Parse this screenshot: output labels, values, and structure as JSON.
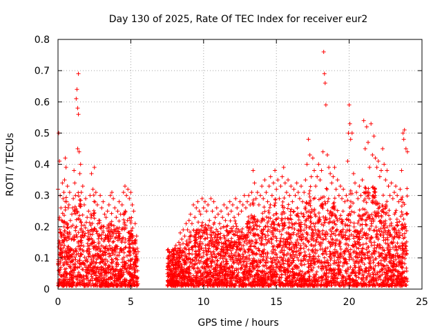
{
  "chart_data": {
    "type": "scatter",
    "title": "Day 130 of 2025, Rate Of TEC Index for receiver eur2",
    "xlabel": "GPS time / hours",
    "ylabel": "ROTI / TECUs",
    "xlim": [
      0,
      25
    ],
    "ylim": [
      0,
      0.8
    ],
    "xticks": [
      0,
      5,
      10,
      15,
      20,
      25
    ],
    "xtick_labels": [
      "0",
      "5",
      "10",
      "15",
      "20",
      "25"
    ],
    "yticks": [
      0,
      0.1,
      0.2,
      0.3,
      0.4,
      0.5,
      0.6,
      0.7,
      0.8
    ],
    "ytick_labels": [
      "0",
      "0.1",
      "0.2",
      "0.3",
      "0.4",
      "0.5",
      "0.6",
      "0.7",
      "0.8"
    ],
    "grid": true,
    "marker": "plus",
    "colors": {
      "marker": "#ff0000",
      "grid": "#a0a0a0",
      "axis": "#000000"
    },
    "coverage": [
      {
        "start": 0.0,
        "end": 5.5
      },
      {
        "start": 7.5,
        "end": 24.0
      }
    ],
    "series": [
      {
        "x": [
          0.0,
          0.05,
          0.1,
          0.1,
          0.15,
          0.2,
          0.25,
          0.3,
          0.35,
          0.4,
          0.45,
          0.5,
          0.55,
          0.6,
          0.65,
          0.7,
          0.75,
          0.8,
          0.85,
          0.9,
          0.95,
          1.0,
          1.05,
          1.1,
          1.15,
          1.2,
          1.25,
          1.3,
          1.35,
          1.35,
          1.4,
          1.4,
          1.45,
          1.5,
          1.55,
          1.6,
          1.7,
          1.8,
          1.9,
          2.0,
          2.1,
          2.2,
          2.3,
          2.4,
          2.5,
          2.6,
          2.7,
          2.8,
          2.9,
          3.0,
          3.1,
          3.2,
          3.3,
          3.4,
          3.5,
          3.6,
          3.7,
          3.8,
          3.9,
          4.0,
          4.1,
          4.2,
          4.3,
          4.4,
          4.5,
          4.6,
          4.7,
          4.8,
          4.9,
          5.0,
          5.1,
          5.2,
          5.3,
          5.4,
          5.5,
          7.6,
          7.7,
          7.8,
          7.9,
          8.0,
          8.1,
          8.2,
          8.3,
          8.4,
          8.5,
          8.6,
          8.7,
          8.8,
          8.9,
          9.0,
          9.1,
          9.2,
          9.3,
          9.4,
          9.5,
          9.6,
          9.7,
          9.8,
          9.9,
          10.0,
          10.1,
          10.2,
          10.3,
          10.4,
          10.5,
          10.6,
          10.7,
          10.8,
          10.9,
          11.0,
          11.1,
          11.2,
          11.3,
          11.4,
          11.5,
          11.6,
          11.7,
          11.8,
          11.9,
          12.0,
          12.1,
          12.2,
          12.3,
          12.4,
          12.5,
          12.6,
          12.7,
          12.8,
          12.9,
          13.0,
          13.1,
          13.2,
          13.3,
          13.4,
          13.5,
          13.6,
          13.7,
          13.8,
          13.9,
          14.0,
          14.1,
          14.2,
          14.3,
          14.4,
          14.5,
          14.6,
          14.7,
          14.8,
          14.9,
          15.0,
          15.1,
          15.2,
          15.3,
          15.4,
          15.5,
          15.6,
          15.7,
          15.8,
          15.9,
          16.0,
          16.1,
          16.2,
          16.3,
          16.4,
          16.5,
          16.6,
          16.7,
          16.8,
          16.9,
          17.0,
          17.1,
          17.2,
          17.3,
          17.4,
          17.5,
          17.6,
          17.7,
          17.8,
          17.9,
          18.0,
          18.1,
          18.2,
          18.25,
          18.3,
          18.35,
          18.4,
          18.5,
          18.6,
          18.7,
          18.8,
          18.9,
          19.0,
          19.1,
          19.2,
          19.3,
          19.4,
          19.5,
          19.6,
          19.7,
          19.8,
          19.9,
          19.95,
          20.0,
          20.05,
          20.1,
          20.2,
          20.3,
          20.4,
          20.5,
          20.6,
          20.7,
          20.8,
          20.9,
          21.0,
          21.1,
          21.2,
          21.3,
          21.4,
          21.5,
          21.6,
          21.7,
          21.8,
          21.9,
          22.0,
          22.1,
          22.2,
          22.3,
          22.4,
          22.5,
          22.6,
          22.7,
          22.8,
          22.9,
          23.0,
          23.1,
          23.2,
          23.3,
          23.4,
          23.5,
          23.6,
          23.7,
          23.75,
          23.8,
          23.9,
          24.0
        ],
        "y": [
          0.32,
          0.5,
          0.41,
          0.23,
          0.3,
          0.26,
          0.22,
          0.34,
          0.29,
          0.31,
          0.35,
          0.42,
          0.39,
          0.28,
          0.33,
          0.26,
          0.27,
          0.31,
          0.22,
          0.2,
          0.24,
          0.26,
          0.29,
          0.38,
          0.34,
          0.3,
          0.61,
          0.64,
          0.58,
          0.45,
          0.69,
          0.56,
          0.44,
          0.37,
          0.4,
          0.31,
          0.33,
          0.27,
          0.29,
          0.23,
          0.25,
          0.3,
          0.37,
          0.32,
          0.39,
          0.31,
          0.27,
          0.22,
          0.3,
          0.26,
          0.28,
          0.24,
          0.23,
          0.25,
          0.27,
          0.3,
          0.31,
          0.29,
          0.26,
          0.23,
          0.25,
          0.28,
          0.24,
          0.27,
          0.31,
          0.33,
          0.3,
          0.32,
          0.29,
          0.31,
          0.27,
          0.25,
          0.21,
          0.17,
          0.12,
          0.1,
          0.09,
          0.12,
          0.1,
          0.13,
          0.14,
          0.12,
          0.15,
          0.18,
          0.16,
          0.19,
          0.17,
          0.21,
          0.19,
          0.22,
          0.24,
          0.21,
          0.27,
          0.23,
          0.26,
          0.28,
          0.25,
          0.24,
          0.29,
          0.26,
          0.28,
          0.25,
          0.27,
          0.22,
          0.29,
          0.25,
          0.28,
          0.23,
          0.26,
          0.24,
          0.21,
          0.25,
          0.23,
          0.27,
          0.22,
          0.26,
          0.24,
          0.28,
          0.25,
          0.27,
          0.23,
          0.29,
          0.26,
          0.24,
          0.28,
          0.25,
          0.27,
          0.3,
          0.26,
          0.28,
          0.3,
          0.27,
          0.31,
          0.38,
          0.34,
          0.29,
          0.31,
          0.27,
          0.3,
          0.33,
          0.29,
          0.35,
          0.31,
          0.28,
          0.33,
          0.36,
          0.3,
          0.34,
          0.38,
          0.32,
          0.35,
          0.29,
          0.33,
          0.36,
          0.39,
          0.34,
          0.31,
          0.35,
          0.3,
          0.33,
          0.28,
          0.32,
          0.3,
          0.34,
          0.31,
          0.29,
          0.33,
          0.28,
          0.31,
          0.35,
          0.4,
          0.48,
          0.43,
          0.36,
          0.42,
          0.38,
          0.33,
          0.36,
          0.4,
          0.35,
          0.38,
          0.44,
          0.76,
          0.69,
          0.66,
          0.59,
          0.43,
          0.39,
          0.37,
          0.34,
          0.36,
          0.39,
          0.32,
          0.35,
          0.3,
          0.33,
          0.29,
          0.32,
          0.28,
          0.3,
          0.41,
          0.5,
          0.59,
          0.53,
          0.48,
          0.5,
          0.37,
          0.34,
          0.31,
          0.29,
          0.33,
          0.3,
          0.35,
          0.54,
          0.45,
          0.52,
          0.47,
          0.39,
          0.53,
          0.43,
          0.49,
          0.42,
          0.39,
          0.41,
          0.36,
          0.38,
          0.45,
          0.4,
          0.35,
          0.38,
          0.33,
          0.3,
          0.34,
          0.29,
          0.31,
          0.33,
          0.3,
          0.28,
          0.32,
          0.38,
          0.5,
          0.48,
          0.51,
          0.45,
          0.44
        ]
      }
    ]
  }
}
